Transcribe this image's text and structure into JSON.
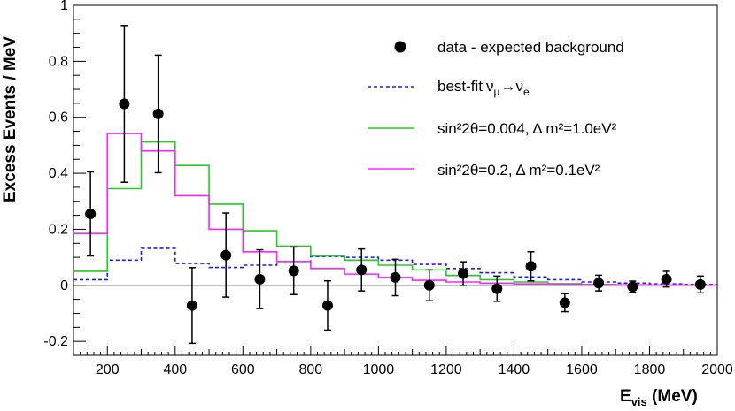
{
  "chart_data": {
    "type": "histogram",
    "xlabel": "E",
    "xlabel_sub": "vis",
    "xlabel_unit": " (MeV)",
    "ylabel": "Excess Events / MeV",
    "xlim": [
      100,
      2000
    ],
    "ylim": [
      -0.25,
      1.0
    ],
    "x_ticks": [
      200,
      400,
      600,
      800,
      1000,
      1200,
      1400,
      1600,
      1800,
      2000
    ],
    "y_ticks": [
      -0.2,
      0,
      0.2,
      0.4,
      0.6,
      0.8,
      1
    ],
    "y_tick_labels": [
      "-0.2",
      "0",
      "0.2",
      "0.4",
      "0.6",
      "0.8",
      "1"
    ],
    "bin_edges": [
      100,
      200,
      300,
      400,
      500,
      600,
      700,
      800,
      900,
      1000,
      1100,
      1200,
      1300,
      1400,
      1500,
      1600,
      1700,
      1800,
      1900,
      2000
    ],
    "data_points": [
      {
        "x": 150,
        "y": 0.255,
        "err": 0.15
      },
      {
        "x": 250,
        "y": 0.648,
        "err": 0.28
      },
      {
        "x": 350,
        "y": 0.612,
        "err": 0.21
      },
      {
        "x": 450,
        "y": -0.072,
        "err": 0.135
      },
      {
        "x": 550,
        "y": 0.108,
        "err": 0.15
      },
      {
        "x": 650,
        "y": 0.022,
        "err": 0.105
      },
      {
        "x": 750,
        "y": 0.052,
        "err": 0.085
      },
      {
        "x": 850,
        "y": -0.072,
        "err": 0.088
      },
      {
        "x": 950,
        "y": 0.055,
        "err": 0.075
      },
      {
        "x": 1050,
        "y": 0.028,
        "err": 0.065
      },
      {
        "x": 1150,
        "y": 0.0,
        "err": 0.055
      },
      {
        "x": 1250,
        "y": 0.042,
        "err": 0.042
      },
      {
        "x": 1350,
        "y": -0.012,
        "err": 0.045
      },
      {
        "x": 1450,
        "y": 0.068,
        "err": 0.052
      },
      {
        "x": 1550,
        "y": -0.062,
        "err": 0.032
      },
      {
        "x": 1650,
        "y": 0.008,
        "err": 0.028
      },
      {
        "x": 1750,
        "y": -0.005,
        "err": 0.02
      },
      {
        "x": 1850,
        "y": 0.022,
        "err": 0.028
      },
      {
        "x": 1950,
        "y": 0.003,
        "err": 0.03
      }
    ],
    "series": [
      {
        "name": "best-fit",
        "color": "#1a1aff",
        "style": "dashed",
        "values": [
          0.02,
          0.09,
          0.132,
          0.078,
          0.064,
          0.072,
          0.085,
          0.103,
          0.1,
          0.09,
          0.075,
          0.06,
          0.045,
          0.03,
          0.02,
          0.012,
          0.008,
          0.005,
          0.003
        ]
      },
      {
        "name": "sin22θ=0.004, Δm2=1.0eV2",
        "color": "#22cc22",
        "style": "solid",
        "values": [
          0.05,
          0.345,
          0.512,
          0.428,
          0.29,
          0.195,
          0.14,
          0.105,
          0.09,
          0.072,
          0.055,
          0.035,
          0.02,
          0.012,
          0.006,
          0.003,
          0.002,
          0.001,
          0.001
        ]
      },
      {
        "name": "sin22θ=0.2, Δm2=0.1eV2",
        "color": "#ff22ff",
        "style": "solid",
        "values": [
          0.185,
          0.542,
          0.48,
          0.32,
          0.2,
          0.12,
          0.085,
          0.06,
          0.04,
          0.028,
          0.018,
          0.012,
          0.008,
          0.005,
          0.003,
          0.002,
          0.001,
          0.001,
          0.001
        ]
      }
    ],
    "legend": {
      "data_label": "data - expected background",
      "bestfit_label": "best-fit",
      "bestfit_nu1": "ν",
      "bestfit_sub1": "μ",
      "bestfit_arrow": "→",
      "bestfit_nu2": "ν",
      "bestfit_sub2": "e",
      "green_label": "sin²2θ=0.004, Δ m²=1.0eV²",
      "magenta_label": "sin²2θ=0.2, Δ m²=0.1eV²"
    }
  }
}
